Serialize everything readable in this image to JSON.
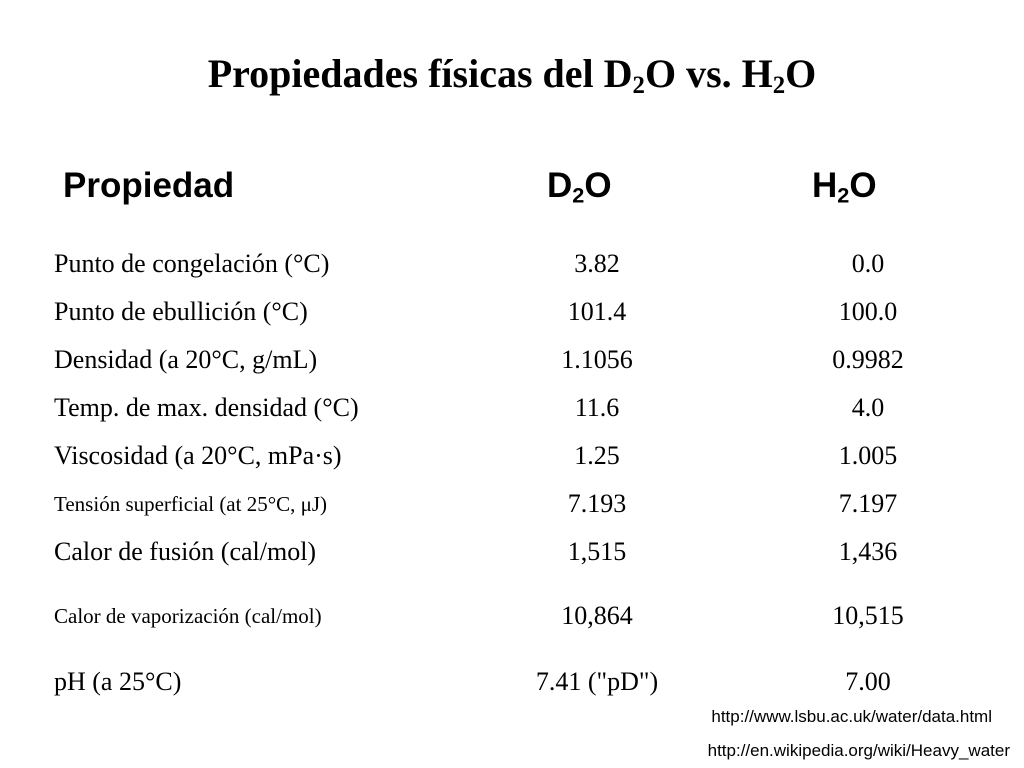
{
  "title": {
    "prefix": "Propiedades físicas del D",
    "sub1": "2",
    "mid": "O vs. H",
    "sub2": "2",
    "suffix": "O"
  },
  "headers": {
    "property": "Propiedad",
    "d2o": {
      "main": "D",
      "sub": "2",
      "suffix": "O"
    },
    "h2o": {
      "main": "H",
      "sub": "2",
      "suffix": "O"
    }
  },
  "rows": [
    {
      "property": "Punto de congelación (°C)",
      "d2o": "3.82",
      "h2o": "0.0"
    },
    {
      "property": "Punto de ebullición (°C)",
      "d2o": "101.4",
      "h2o": "100.0"
    },
    {
      "property": "Densidad (a 20°C, g/mL)",
      "d2o": "1.1056",
      "h2o": "0.9982"
    },
    {
      "property": "Temp. de max. densidad (°C)",
      "d2o": "11.6",
      "h2o": "4.0"
    },
    {
      "property": "Viscosidad (a 20°C, mPa·s)",
      "d2o": "1.25",
      "h2o": "1.005"
    },
    {
      "property": "Tensión superficial (at 25°C, μJ)",
      "d2o": "7.193",
      "h2o": "7.197"
    },
    {
      "property": "Calor de fusión (cal/mol)",
      "d2o": "1,515",
      "h2o": "1,436"
    },
    {
      "property": "Calor de vaporización (cal/mol)",
      "d2o": "10,864",
      "h2o": "10,515"
    },
    {
      "property": "pH (a 25°C)",
      "d2o": "7.41 (\"pD\")",
      "h2o": "7.00"
    }
  ],
  "sources": [
    "http://www.lsbu.ac.uk/water/data.html",
    "http://en.wikipedia.org/wiki/Heavy_water"
  ]
}
